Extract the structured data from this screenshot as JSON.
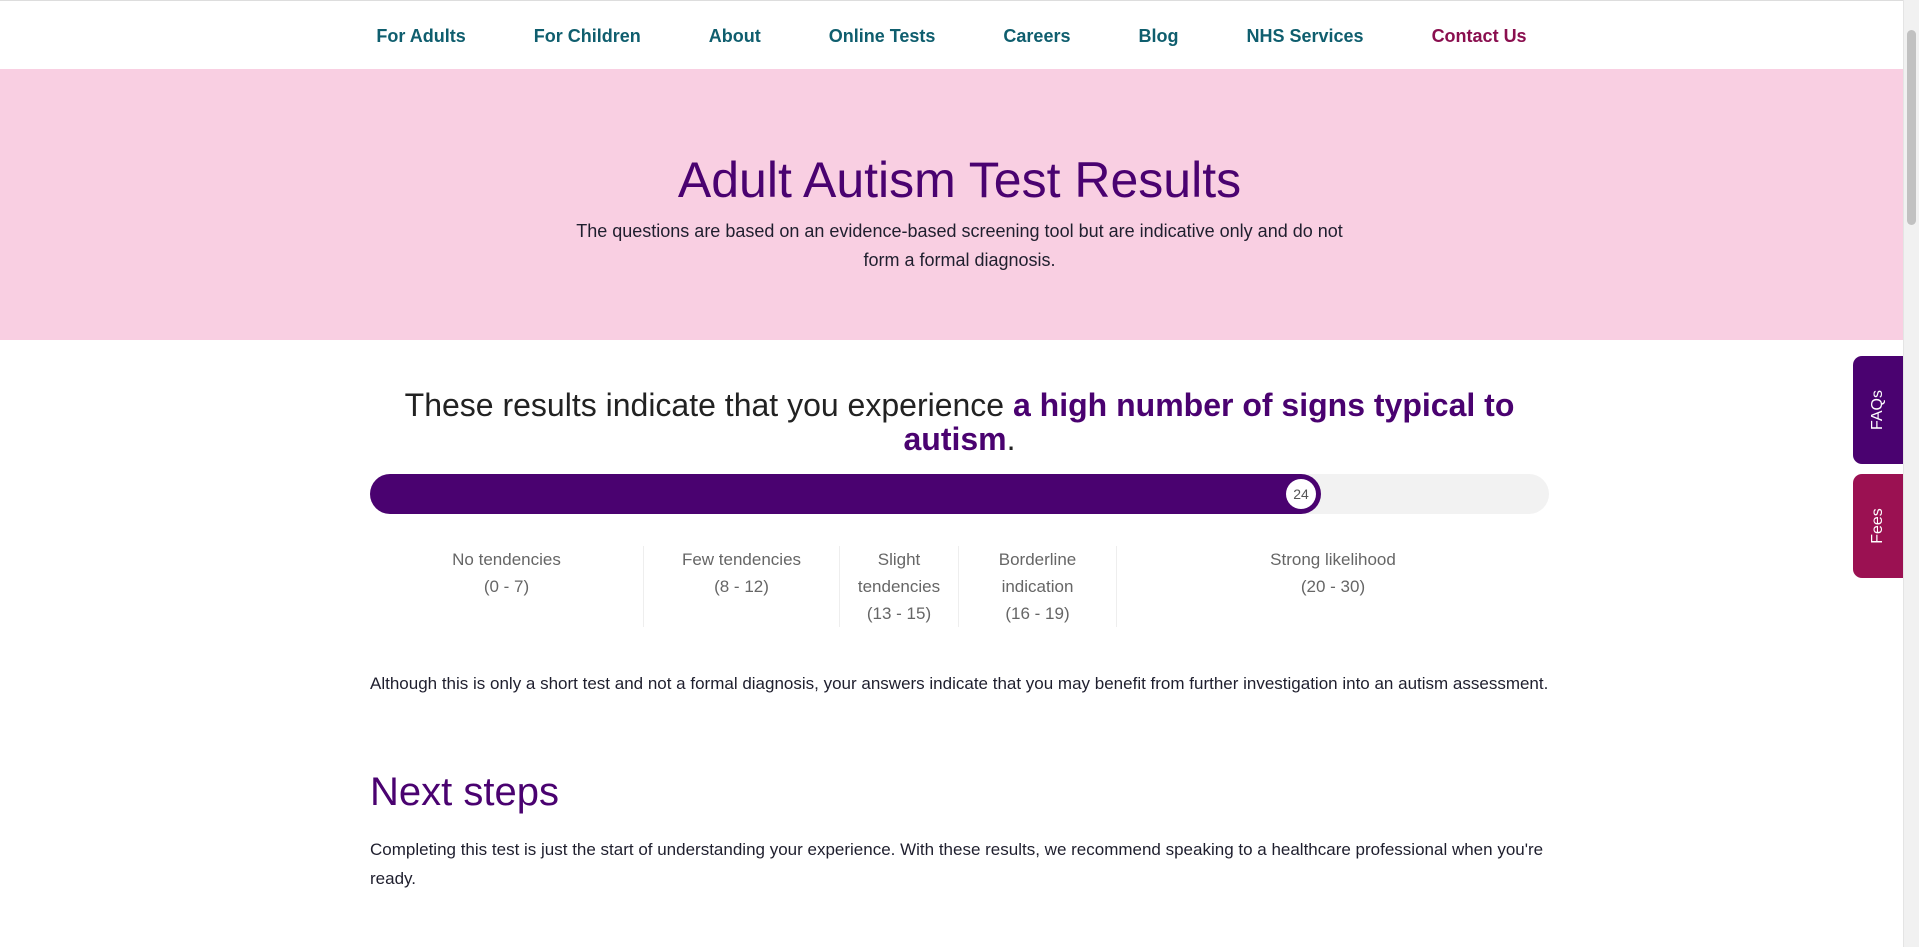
{
  "nav": {
    "items": [
      {
        "label": "For Adults"
      },
      {
        "label": "For Children"
      },
      {
        "label": "About"
      },
      {
        "label": "Online Tests"
      },
      {
        "label": "Careers"
      },
      {
        "label": "Blog"
      },
      {
        "label": "NHS Services"
      },
      {
        "label": "Contact Us"
      }
    ]
  },
  "hero": {
    "title": "Adult Autism Test Results",
    "subtitle": "The questions are based on an evidence-based screening tool but are indicative only and do not form a formal diagnosis."
  },
  "result": {
    "prefix": "These results indicate that you experience ",
    "highlight": "a high number of signs typical to autism",
    "suffix": ".",
    "score": "24",
    "score_max": 30,
    "fill_color": "#4a0270"
  },
  "ranges": [
    {
      "label": "No tendencies",
      "range": "(0 - 7)"
    },
    {
      "label": "Few tendencies",
      "range": "(8 - 12)"
    },
    {
      "label": "Slight tendencies",
      "range": "(13 - 15)"
    },
    {
      "label": "Borderline indication",
      "range": "(16 - 19)"
    },
    {
      "label": "Strong likelihood",
      "range": "(20 - 30)"
    }
  ],
  "body": {
    "paragraph": "Although this is only a short test and not a formal diagnosis, your answers indicate that you may benefit from further investigation into an autism assessment.",
    "next_title": "Next steps",
    "next_paragraph": "Completing this test is just the start of understanding your experience. With these results, we recommend speaking to a healthcare professional when you're ready."
  },
  "side_tabs": {
    "faqs": "FAQs",
    "fees": "Fees"
  }
}
